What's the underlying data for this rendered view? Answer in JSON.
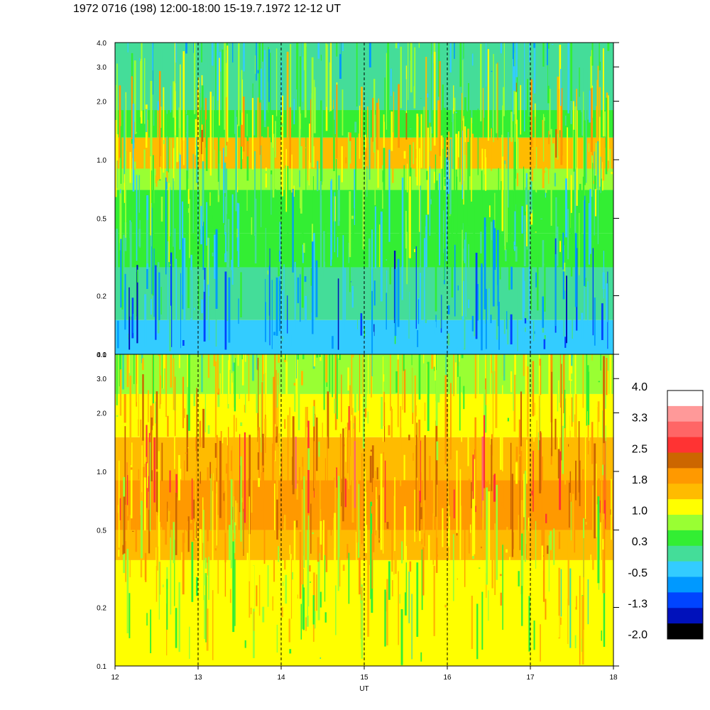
{
  "title": "1972 0716 (198) 12:00-18:00 15-19.7.1972  12-12 UT",
  "chart_data": [
    {
      "type": "heatmap",
      "panel": "upper",
      "x_range": [
        12,
        18
      ],
      "y_range": [
        0.1,
        4.0
      ],
      "y_scale": "log",
      "y_ticks": [
        0.1,
        0.2,
        0.5,
        1.0,
        2.0,
        3.0,
        4.0
      ],
      "y_tick_labels": [
        "0.1",
        "0.2",
        "0.5",
        "1.0",
        "2.0",
        "3.0",
        "4.0"
      ],
      "hour_markers": [
        13,
        14,
        15,
        16,
        17
      ],
      "bands": [
        {
          "from": 0.1,
          "to": 0.15,
          "level": -0.5
        },
        {
          "from": 0.15,
          "to": 0.28,
          "level": -0.1
        },
        {
          "from": 0.28,
          "to": 0.42,
          "level": 0.3
        },
        {
          "from": 0.42,
          "to": 0.7,
          "level": 0.6
        },
        {
          "from": 0.7,
          "to": 0.9,
          "level": 0.9
        },
        {
          "from": 0.9,
          "to": 1.3,
          "level": 1.4
        },
        {
          "from": 1.3,
          "to": 1.8,
          "level": 0.5
        },
        {
          "from": 1.8,
          "to": 4.0,
          "level": 0.0
        }
      ]
    },
    {
      "type": "heatmap",
      "panel": "lower",
      "x_range": [
        12,
        18
      ],
      "x_label": "UT",
      "x_ticks": [
        12,
        13,
        14,
        15,
        16,
        17,
        18
      ],
      "x_tick_labels": [
        "12",
        "13",
        "14",
        "15",
        "16",
        "17",
        "18"
      ],
      "y_range": [
        0.1,
        4.0
      ],
      "y_scale": "log",
      "y_ticks": [
        0.1,
        0.2,
        0.5,
        1.0,
        2.0,
        3.0,
        4.0
      ],
      "y_tick_labels": [
        "0.1",
        "0.2",
        "0.5",
        "1.0",
        "2.0",
        "3.0",
        "4.0"
      ],
      "hour_markers": [
        13,
        14,
        15,
        16,
        17
      ],
      "bands": [
        {
          "from": 0.1,
          "to": 0.2,
          "level": 1.0
        },
        {
          "from": 0.2,
          "to": 0.35,
          "level": 1.3
        },
        {
          "from": 0.35,
          "to": 0.5,
          "level": 1.6
        },
        {
          "from": 0.5,
          "to": 0.9,
          "level": 2.1
        },
        {
          "from": 0.9,
          "to": 1.5,
          "level": 1.7
        },
        {
          "from": 1.5,
          "to": 2.5,
          "level": 1.3
        },
        {
          "from": 2.5,
          "to": 4.0,
          "level": 0.9
        }
      ]
    }
  ],
  "colorbar": {
    "labels": [
      "4.0",
      "3.3",
      "2.5",
      "1.8",
      "1.0",
      "0.3",
      "-0.5",
      "-1.3",
      "-2.0"
    ],
    "colors": [
      "#ffffff",
      "#ff9999",
      "#ff6666",
      "#ff3333",
      "#cc6600",
      "#ff9900",
      "#ffbb00",
      "#ffff00",
      "#99ff33",
      "#33ee33",
      "#44dd99",
      "#33ccff",
      "#0099ff",
      "#0044ff",
      "#0011bb",
      "#000000"
    ]
  }
}
